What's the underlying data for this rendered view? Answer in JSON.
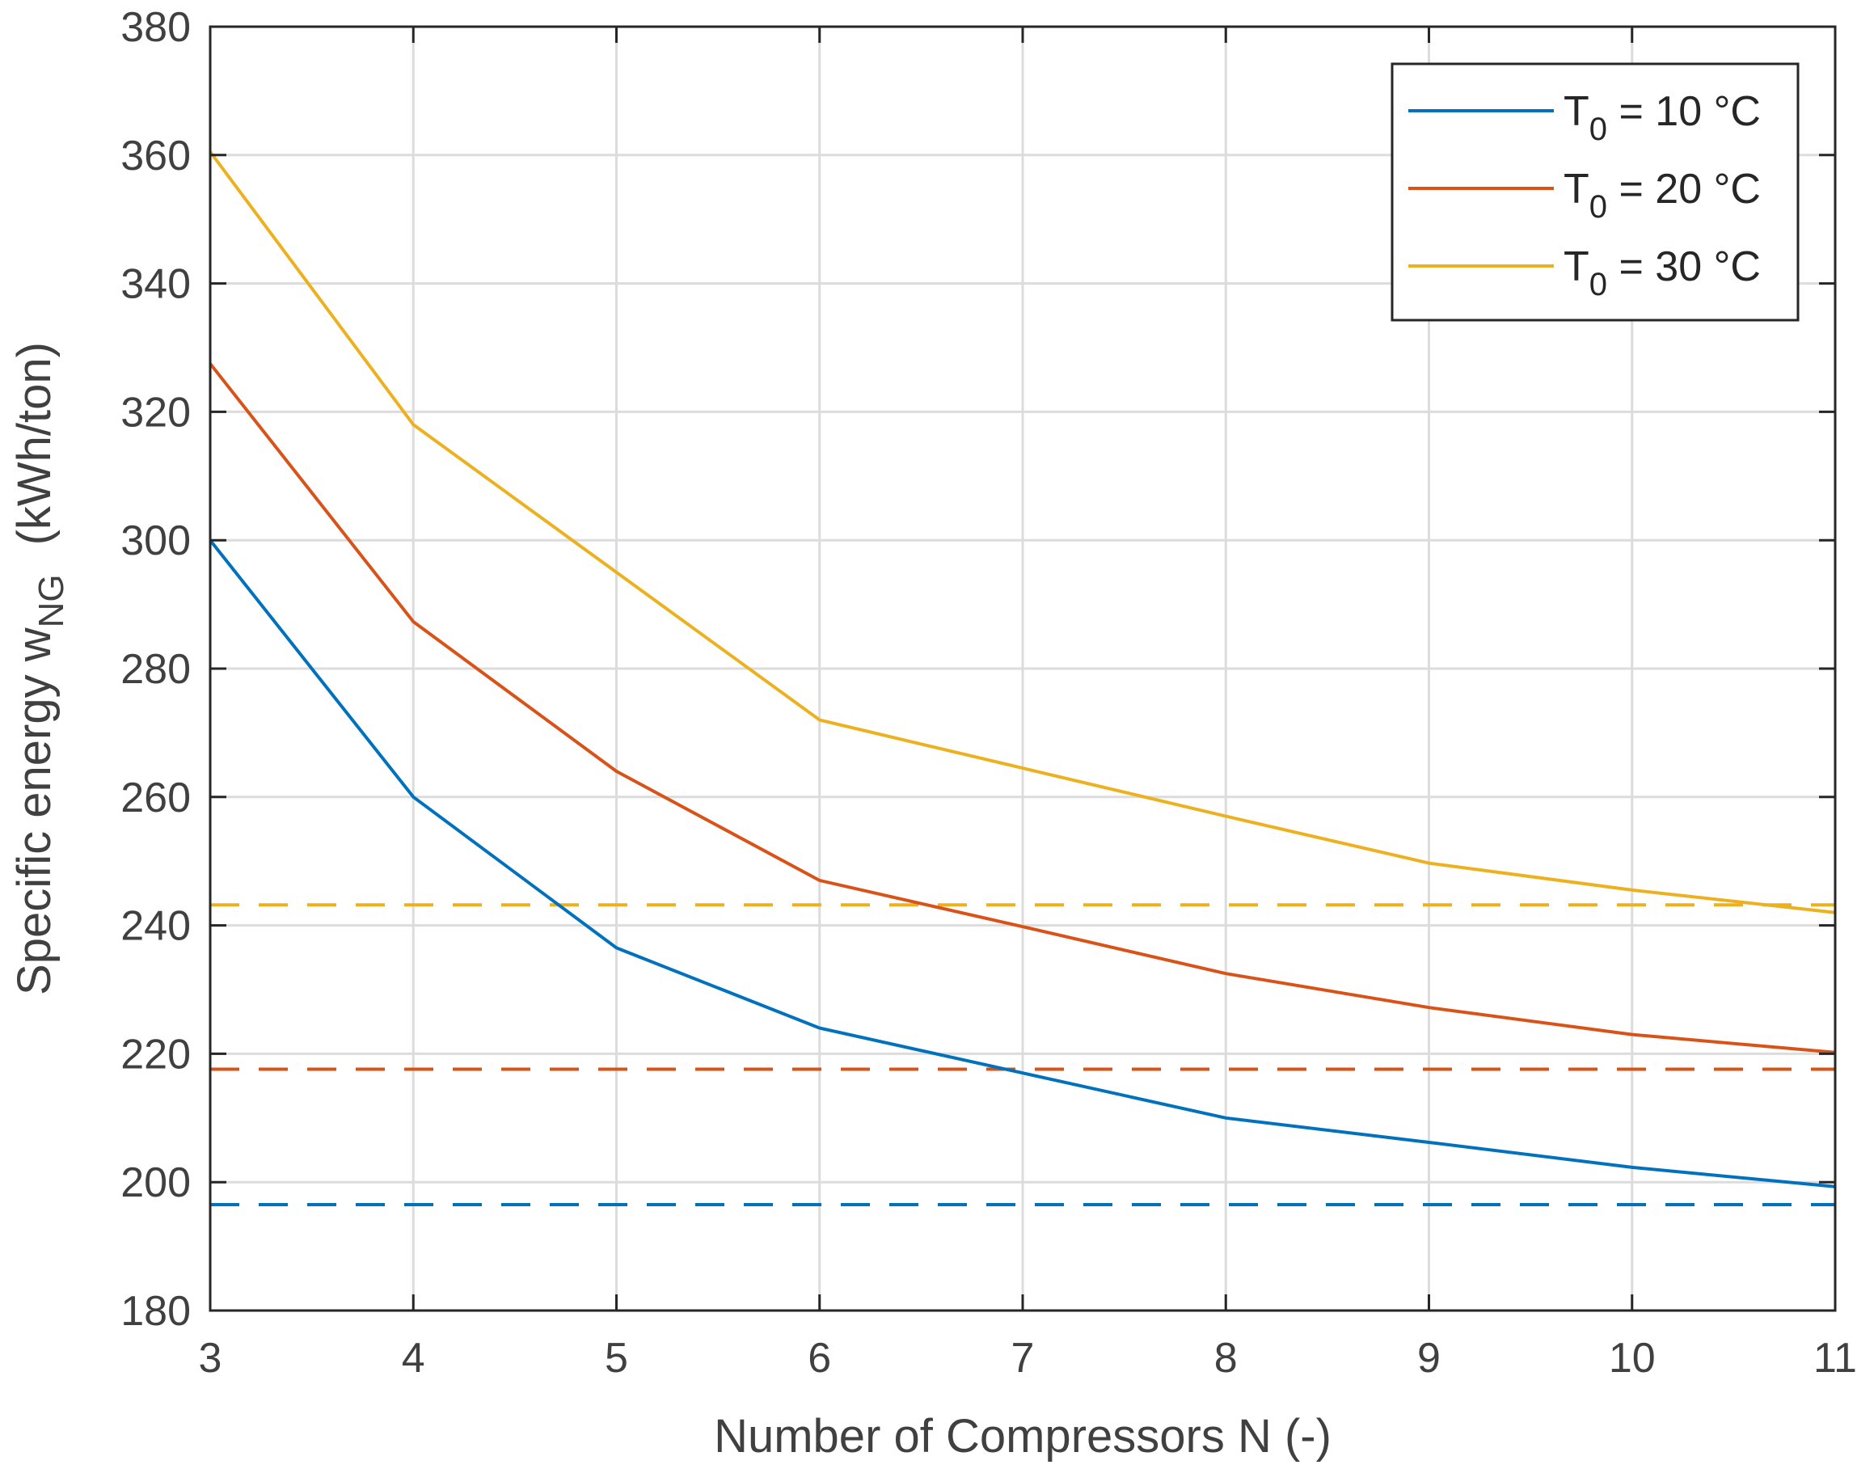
{
  "chart_data": {
    "type": "line",
    "title": "",
    "xlabel": "Number of Compressors N (-)",
    "ylabel": {
      "main": "Specific energy w",
      "subscript": "NG",
      "unit": "(kWh/ton)"
    },
    "xlim": [
      3,
      11
    ],
    "ylim": [
      180,
      380
    ],
    "xticks": [
      3,
      4,
      5,
      6,
      7,
      8,
      9,
      10,
      11
    ],
    "yticks": [
      180,
      200,
      220,
      240,
      260,
      280,
      300,
      320,
      340,
      360,
      380
    ],
    "grid": true,
    "legend_position": "top-right",
    "x": [
      3,
      4,
      5,
      6,
      7,
      8,
      9,
      10,
      11
    ],
    "series": [
      {
        "name": "T0 = 10 °C",
        "label_main": "T",
        "label_sub": "0",
        "label_rest": " = 10 °C",
        "color": "#0072BD",
        "values": [
          300,
          260,
          236.5,
          224,
          217,
          210,
          206.2,
          202.3,
          199.3
        ],
        "reference": 196.5
      },
      {
        "name": "T0 = 20 °C",
        "label_main": "T",
        "label_sub": "0",
        "label_rest": " = 20 °C",
        "color": "#D95319",
        "values": [
          327.5,
          287.3,
          264,
          247,
          239.8,
          232.5,
          227.2,
          223,
          220.2
        ],
        "reference": 217.6
      },
      {
        "name": "T0 = 30 °C",
        "label_main": "T",
        "label_sub": "0",
        "label_rest": " = 30 °C",
        "color": "#EDB120",
        "values": [
          360.5,
          318,
          295,
          272,
          264.5,
          257,
          249.7,
          245.5,
          242
        ],
        "reference": 243.2
      }
    ]
  }
}
